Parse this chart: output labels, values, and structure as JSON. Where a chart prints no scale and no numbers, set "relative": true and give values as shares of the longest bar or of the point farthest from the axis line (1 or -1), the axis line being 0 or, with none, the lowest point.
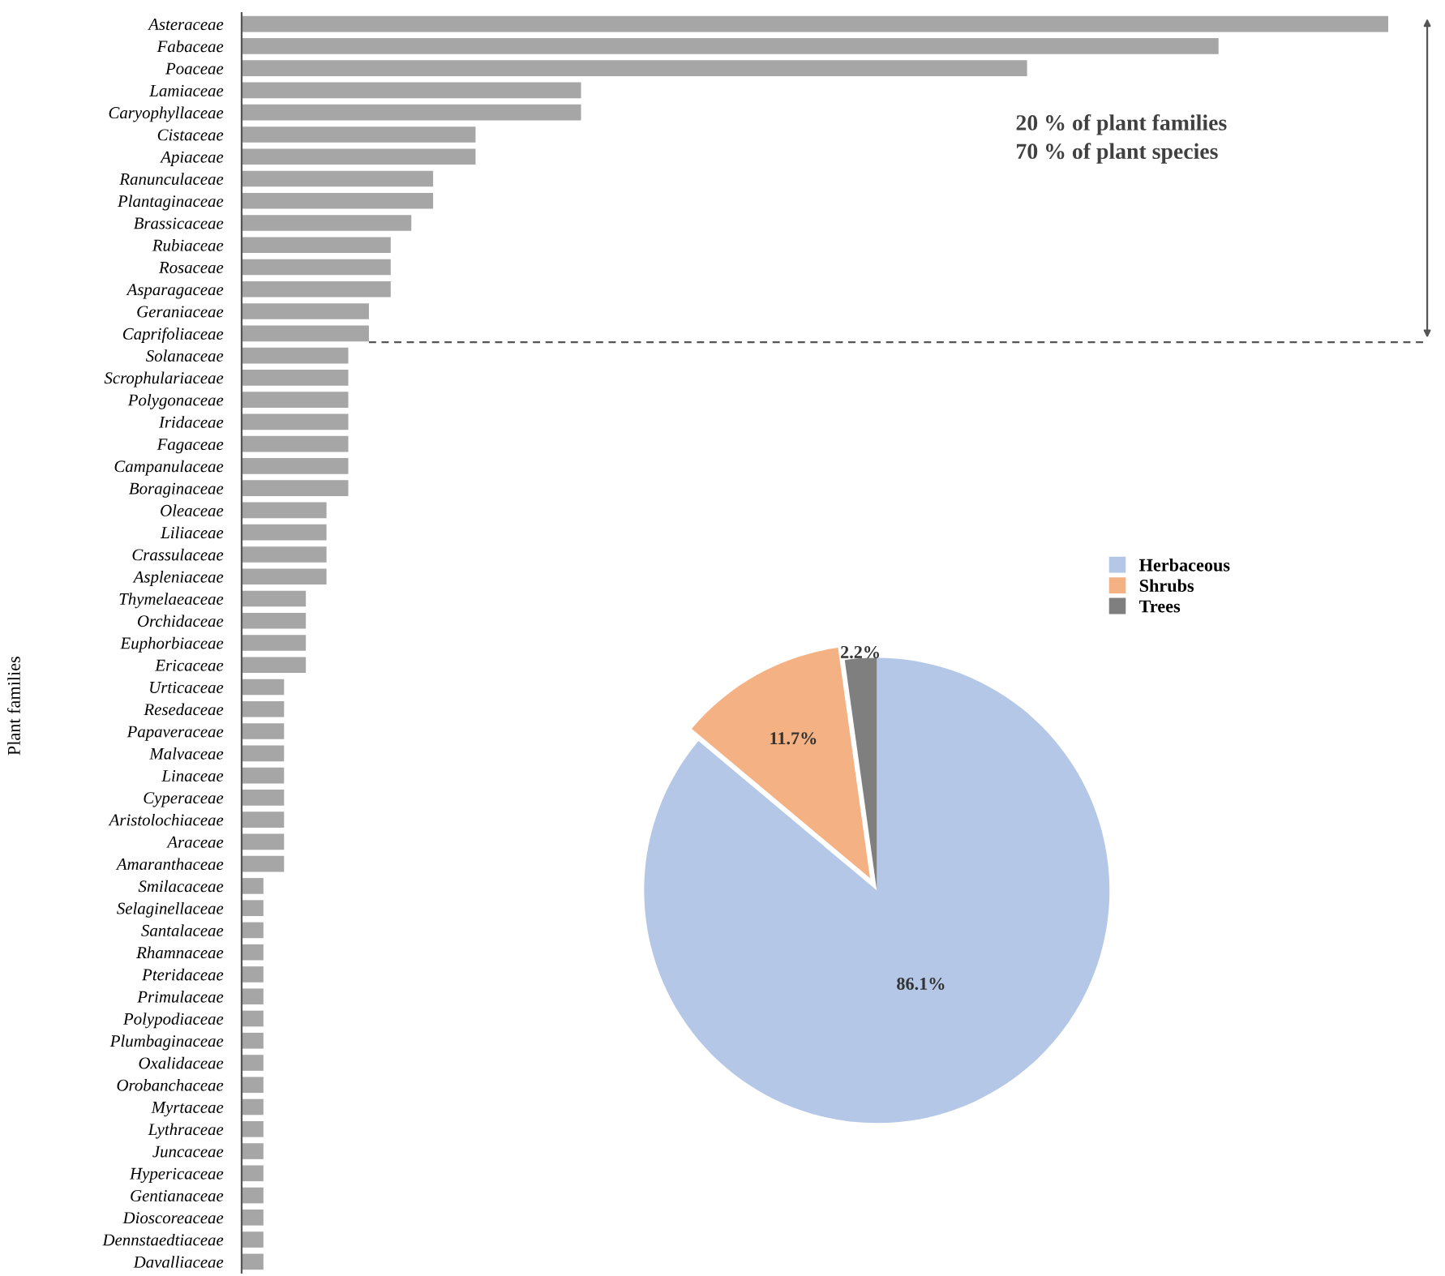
{
  "chart_data": [
    {
      "type": "bar",
      "orientation": "horizontal",
      "relative": true,
      "color": "#a6a6a6",
      "ylabel": "Plant families",
      "categories": [
        "Asteraceae",
        "Fabaceae",
        "Poaceae",
        "Lamiaceae",
        "Caryophyllaceae",
        "Cistaceae",
        "Apiaceae",
        "Ranunculaceae",
        "Plantaginaceae",
        "Brassicaceae",
        "Rubiaceae",
        "Rosaceae",
        "Asparagaceae",
        "Geraniaceae",
        "Caprifoliaceae",
        "Solanaceae",
        "Scrophulariaceae",
        "Polygonaceae",
        "Iridaceae",
        "Fagaceae",
        "Campanulaceae",
        "Boraginaceae",
        "Oleaceae",
        "Liliaceae",
        "Crassulaceae",
        "Aspleniaceae",
        "Thymelaeaceae",
        "Orchidaceae",
        "Euphorbiaceae",
        "Ericaceae",
        "Urticaceae",
        "Resedaceae",
        "Papaveraceae",
        "Malvaceae",
        "Linaceae",
        "Cyperaceae",
        "Aristolochiaceae",
        "Araceae",
        "Amaranthaceae",
        "Smilacaceae",
        "Selaginellaceae",
        "Santalaceae",
        "Rhamnaceae",
        "Pteridaceae",
        "Primulaceae",
        "Polypodiaceae",
        "Plumbaginaceae",
        "Oxalidaceae",
        "Orobanchaceae",
        "Myrtaceae",
        "Lythraceae",
        "Juncaceae",
        "Hypericaceae",
        "Gentianaceae",
        "Dioscoreaceae",
        "Dennstaedtiaceae",
        "Davalliaceae"
      ],
      "values": [
        1.0,
        0.852,
        0.685,
        0.296,
        0.296,
        0.204,
        0.204,
        0.167,
        0.167,
        0.148,
        0.13,
        0.13,
        0.13,
        0.111,
        0.111,
        0.093,
        0.093,
        0.093,
        0.093,
        0.093,
        0.093,
        0.093,
        0.074,
        0.074,
        0.074,
        0.074,
        0.056,
        0.056,
        0.056,
        0.056,
        0.037,
        0.037,
        0.037,
        0.037,
        0.037,
        0.037,
        0.037,
        0.037,
        0.037,
        0.019,
        0.019,
        0.019,
        0.019,
        0.019,
        0.019,
        0.019,
        0.019,
        0.019,
        0.019,
        0.019,
        0.019,
        0.019,
        0.019,
        0.019,
        0.019,
        0.019,
        0.019
      ],
      "annotations": [
        "20 % of plant families\n70 % of plant species"
      ]
    },
    {
      "type": "pie",
      "categories": [
        "Herbaceous",
        "Shrubs",
        "Trees"
      ],
      "values": [
        86.1,
        11.7,
        2.2
      ],
      "colors": [
        "#b4c7e7",
        "#f4b183",
        "#7f7f7f"
      ],
      "value_labels": [
        "86.1%",
        "11.7%",
        "2.2%"
      ],
      "legend": "top right"
    }
  ]
}
